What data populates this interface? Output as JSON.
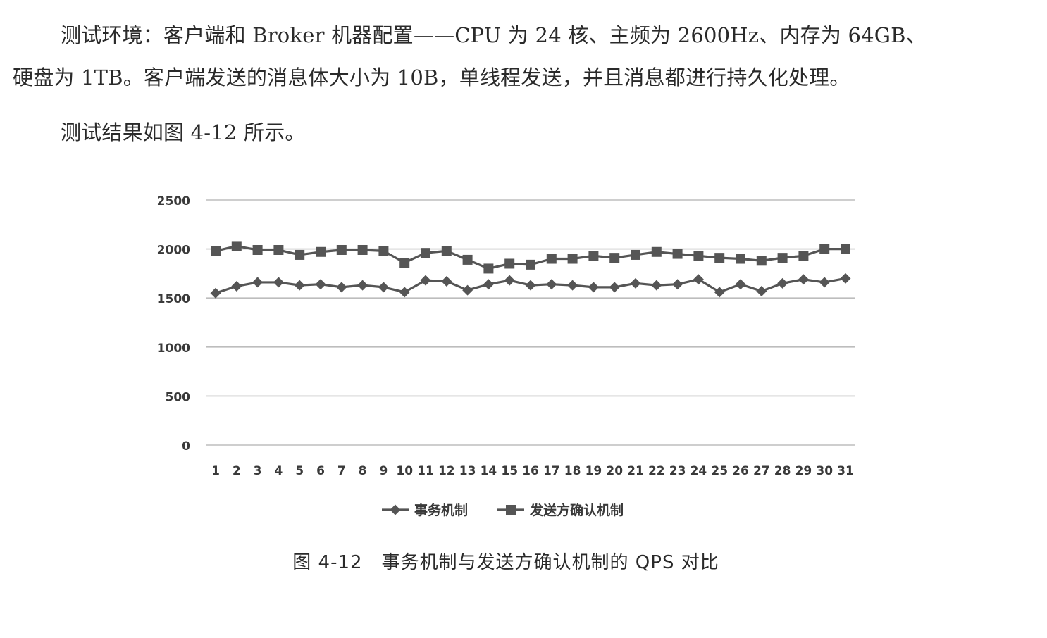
{
  "document": {
    "para1_line1": "测试环境：客户端和 Broker 机器配置——CPU 为 24 核、主频为 2600Hz、内存为 64GB、",
    "para1_line2": "硬盘为 1TB。客户端发送的消息体大小为 10B，单线程发送，并且消息都进行持久化处理。",
    "para2": "测试结果如图 4-12 所示。",
    "figure_caption": "图 4-12　事务机制与发送方确认机制的 QPS 对比"
  },
  "chart_data": {
    "type": "line",
    "title": "",
    "xlabel": "",
    "ylabel": "",
    "ylim": [
      0,
      2500
    ],
    "yticks": [
      0,
      500,
      1000,
      1500,
      2000,
      2500
    ],
    "grid": true,
    "legend_position": "bottom",
    "categories": [
      "1",
      "2",
      "3",
      "4",
      "5",
      "6",
      "7",
      "8",
      "9",
      "10",
      "11",
      "12",
      "13",
      "14",
      "15",
      "16",
      "17",
      "18",
      "19",
      "20",
      "21",
      "22",
      "23",
      "24",
      "25",
      "26",
      "27",
      "28",
      "29",
      "30",
      "31"
    ],
    "series": [
      {
        "name": "事务机制",
        "marker": "diamond",
        "color": "#555555",
        "values": [
          1550,
          1620,
          1660,
          1660,
          1630,
          1640,
          1610,
          1630,
          1610,
          1560,
          1680,
          1670,
          1580,
          1640,
          1680,
          1630,
          1640,
          1630,
          1610,
          1610,
          1650,
          1630,
          1640,
          1690,
          1560,
          1640,
          1570,
          1650,
          1690,
          1660,
          1700
        ]
      },
      {
        "name": "发送方确认机制",
        "marker": "square",
        "color": "#555555",
        "values": [
          1980,
          2030,
          1990,
          1990,
          1940,
          1970,
          1990,
          1990,
          1980,
          1860,
          1960,
          1980,
          1890,
          1800,
          1850,
          1840,
          1900,
          1900,
          1930,
          1910,
          1940,
          1970,
          1950,
          1930,
          1910,
          1900,
          1880,
          1910,
          1930,
          2000,
          2000
        ]
      }
    ]
  }
}
